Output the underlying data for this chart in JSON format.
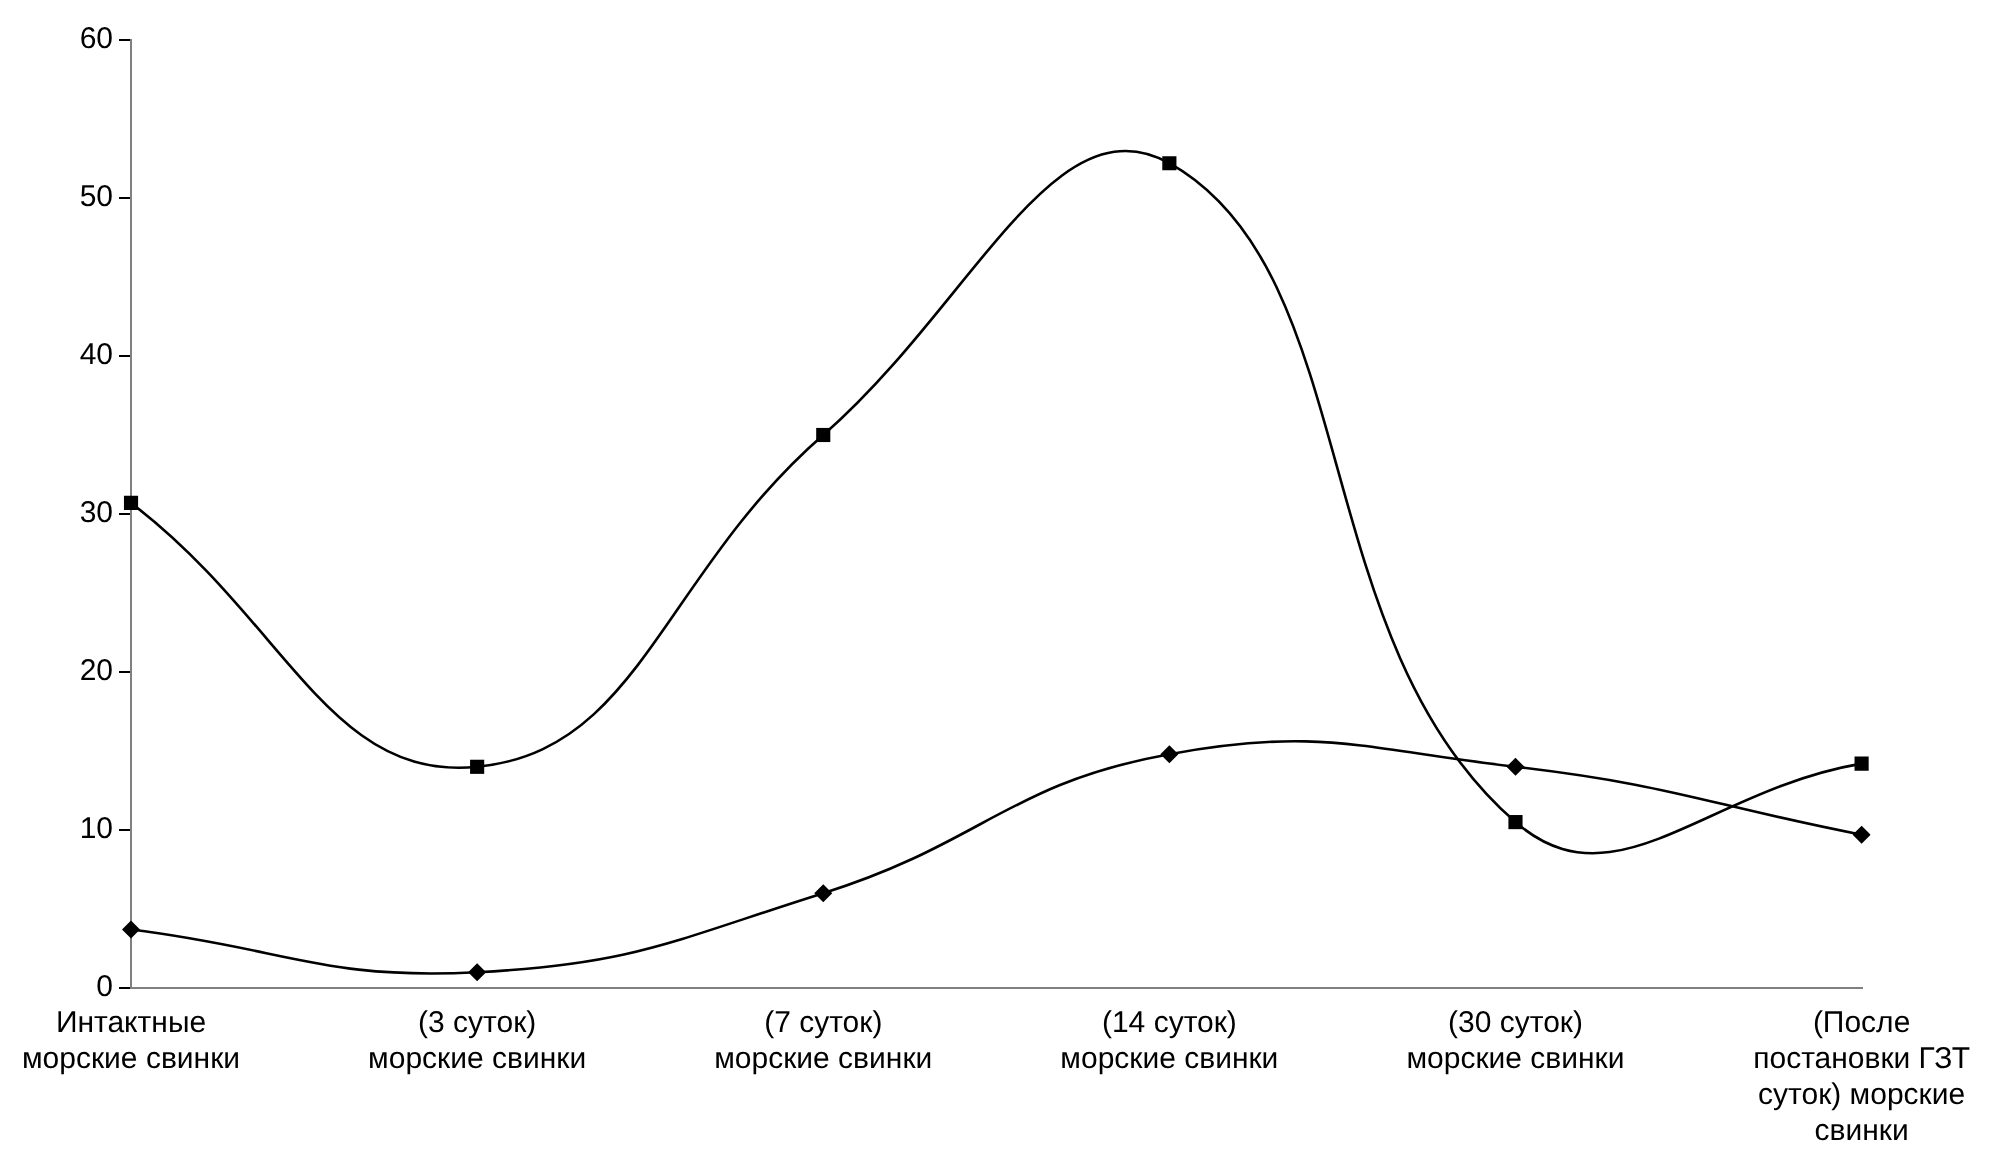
{
  "chart_data": {
    "type": "line",
    "categories": [
      "Интактные морские свинки",
      "(3 суток) морские свинки",
      "(7 суток) морские свинки",
      "(14 суток) морские свинки",
      "(30 суток) морские свинки",
      "(После постановки ГЗТ суток) морские свинки"
    ],
    "series": [
      {
        "color": "#000000",
        "marker": "square",
        "values": [
          30.7,
          14,
          35,
          52.2,
          10.5,
          14.2
        ]
      },
      {
        "color": "#000000",
        "marker": "diamond",
        "values": [
          3.7,
          1,
          6,
          14.8,
          14,
          9.7
        ]
      }
    ],
    "ylim": [
      0,
      60
    ],
    "yticks": [
      0,
      10,
      20,
      30,
      40,
      50,
      60
    ],
    "grid": false,
    "legend": false,
    "line_style": "solid"
  }
}
